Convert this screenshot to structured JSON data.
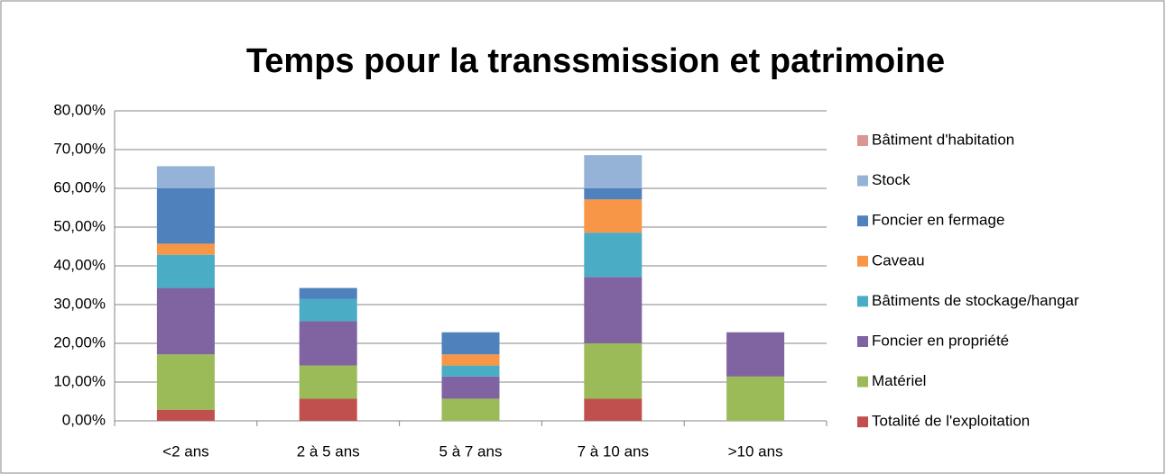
{
  "chart_data": {
    "type": "stacked_bar",
    "title": "Temps pour la transsmission et patrimoine",
    "categories": [
      "<2 ans",
      "2 à 5 ans",
      "5 à 7 ans",
      "7 à 10 ans",
      ">10 ans"
    ],
    "series": [
      {
        "name": "Totalité de l'exploitation",
        "color": "#c0504d",
        "values": [
          2.86,
          5.71,
          0,
          5.71,
          0
        ]
      },
      {
        "name": "Matériel",
        "color": "#9bbb59",
        "values": [
          14.29,
          8.57,
          5.71,
          14.29,
          11.43
        ]
      },
      {
        "name": "Foncier en propriété",
        "color": "#8064a2",
        "values": [
          17.14,
          11.43,
          5.71,
          17.14,
          11.43
        ]
      },
      {
        "name": "Bâtiments de stockage/hangar",
        "color": "#4bacc6",
        "values": [
          8.57,
          5.71,
          2.86,
          11.43,
          0
        ]
      },
      {
        "name": "Caveau",
        "color": "#f79646",
        "values": [
          2.86,
          0,
          2.86,
          8.57,
          0
        ]
      },
      {
        "name": "Foncier en fermage",
        "color": "#4f81bd",
        "values": [
          14.29,
          2.86,
          5.71,
          2.86,
          0
        ]
      },
      {
        "name": "Stock",
        "color": "#95b3d7",
        "values": [
          5.71,
          0,
          0,
          8.57,
          0
        ]
      },
      {
        "name": "Bâtiment d'habitation",
        "color": "#d99694",
        "values": [
          0,
          0,
          0,
          0,
          0
        ]
      }
    ],
    "ylim": [
      0,
      80
    ],
    "yticks": [
      {
        "value": 0,
        "label": "0,00%"
      },
      {
        "value": 10,
        "label": "10,00%"
      },
      {
        "value": 20,
        "label": "20,00%"
      },
      {
        "value": 30,
        "label": "30,00%"
      },
      {
        "value": 40,
        "label": "40,00%"
      },
      {
        "value": 50,
        "label": "50,00%"
      },
      {
        "value": 60,
        "label": "60,00%"
      },
      {
        "value": 70,
        "label": "70,00%"
      },
      {
        "value": 80,
        "label": "80,00%"
      }
    ],
    "grid": true,
    "legend": "right"
  }
}
